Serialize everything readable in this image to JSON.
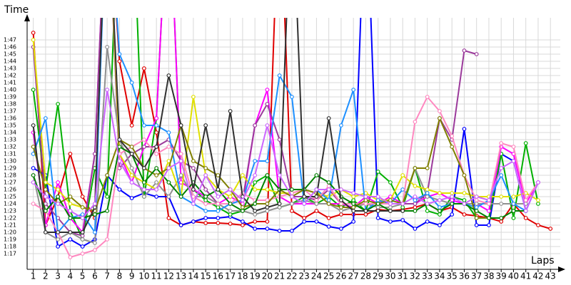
{
  "chart_data": {
    "type": "line",
    "ylabel": "Time",
    "xlabel": "Laps",
    "x": [
      1,
      2,
      3,
      4,
      5,
      6,
      7,
      8,
      9,
      10,
      11,
      12,
      13,
      14,
      15,
      16,
      17,
      18,
      19,
      20,
      21,
      22,
      23,
      24,
      25,
      26,
      27,
      28,
      29,
      30,
      31,
      32,
      33,
      34,
      35,
      36,
      37,
      38,
      39,
      40,
      41,
      42,
      43
    ],
    "xlim": [
      0.5,
      43.8
    ],
    "ylim": [
      74.8,
      110.1
    ],
    "grid": true,
    "yticks": [
      {
        "value": 77,
        "label": "1:17"
      },
      {
        "value": 78,
        "label": "1:18"
      },
      {
        "value": 79,
        "label": "1:19"
      },
      {
        "value": 80,
        "label": "1:20"
      },
      {
        "value": 81,
        "label": "1:21"
      },
      {
        "value": 82,
        "label": "1:22"
      },
      {
        "value": 83,
        "label": "1:23"
      },
      {
        "value": 84,
        "label": "1:24"
      },
      {
        "value": 85,
        "label": "1:25"
      },
      {
        "value": 86,
        "label": "1:26"
      },
      {
        "value": 87,
        "label": "1:27"
      },
      {
        "value": 88,
        "label": "1:28"
      },
      {
        "value": 89,
        "label": "1:29"
      },
      {
        "value": 90,
        "label": "1:30"
      },
      {
        "value": 91,
        "label": "1:31"
      },
      {
        "value": 92,
        "label": "1:32"
      },
      {
        "value": 93,
        "label": "1:33"
      },
      {
        "value": 94,
        "label": "1:34"
      },
      {
        "value": 95,
        "label": "1:35"
      },
      {
        "value": 96,
        "label": "1:36"
      },
      {
        "value": 97,
        "label": "1:37"
      },
      {
        "value": 98,
        "label": "1:38"
      },
      {
        "value": 99,
        "label": "1:39"
      },
      {
        "value": 100,
        "label": "1:40"
      },
      {
        "value": 101,
        "label": "1:41"
      },
      {
        "value": 102,
        "label": "1:42"
      },
      {
        "value": 103,
        "label": "1:43"
      },
      {
        "value": 104,
        "label": "1:44"
      },
      {
        "value": 105,
        "label": "1:45"
      },
      {
        "value": 106,
        "label": "1:46"
      },
      {
        "value": 107,
        "label": "1:47"
      }
    ],
    "series": [
      {
        "color": "#e00000",
        "values": [
          108,
          81,
          85,
          91,
          85,
          82,
          130,
          104,
          95,
          103,
          94,
          82,
          81,
          81.5,
          81.3,
          81.3,
          81.2,
          81,
          81.5,
          81.5,
          130,
          83,
          82,
          83,
          82,
          82.5,
          82.5,
          82.5,
          83.2,
          83,
          83.2,
          83.5,
          84,
          83,
          83.5,
          82.5,
          82.3,
          82,
          81.5,
          84,
          82,
          81,
          80.5
        ]
      },
      {
        "color": "#0000ff",
        "values": [
          89,
          88,
          78,
          79,
          78,
          79,
          88,
          86,
          84.8,
          85.5,
          85,
          85,
          81,
          81.5,
          82,
          82,
          82.2,
          81.5,
          80.5,
          80.5,
          80.2,
          80.2,
          81.5,
          81.5,
          80.8,
          80.5,
          81.5,
          130,
          82,
          81.5,
          81.7,
          80.5,
          81.5,
          81,
          82.5,
          94.5,
          81,
          81,
          91,
          90,
          83,
          87,
          null
        ]
      },
      {
        "color": "#00b000",
        "values": [
          100,
          86,
          98,
          83,
          79,
          89,
          85,
          130,
          130,
          85,
          96,
          130,
          87,
          86,
          84.5,
          83.5,
          82.5,
          83,
          87,
          88,
          83.5,
          84,
          85,
          84,
          85,
          83.5,
          84.5,
          83,
          88.5,
          87,
          83.5,
          89,
          83,
          82.5,
          85,
          84.5,
          82,
          82,
          91,
          82,
          92.5,
          84,
          null
        ]
      },
      {
        "color": "#ff00ff",
        "values": [
          94,
          81,
          87,
          82,
          80,
          91,
          130,
          91,
          87,
          92,
          96,
          130,
          87,
          86,
          85,
          84,
          85,
          84,
          95,
          100,
          85,
          84,
          84,
          84,
          84,
          84,
          83.5,
          85,
          84,
          85,
          84,
          84,
          85,
          85.5,
          84.5,
          84,
          84,
          83,
          92,
          91,
          84,
          87,
          null
        ]
      },
      {
        "color": "#9b3a9b",
        "values": [
          106,
          84,
          82,
          80,
          79.5,
          91,
          130,
          89,
          91,
          92,
          92,
          93,
          90,
          89,
          86,
          84,
          84,
          84.5,
          95,
          98,
          93,
          85,
          85,
          84.5,
          86,
          84,
          84,
          84,
          84,
          84,
          84,
          84,
          85.5,
          96,
          93,
          105.5,
          105,
          null,
          null,
          null,
          null,
          null,
          null
        ]
      },
      {
        "color": "#909090",
        "values": [
          88,
          80,
          79,
          80,
          79,
          78.5,
          106,
          93,
          89,
          85,
          87,
          85,
          88,
          85,
          85,
          84,
          83,
          83,
          82.5,
          83,
          83.5,
          84,
          84.5,
          84,
          84,
          83,
          83.5,
          84,
          83.5,
          83.5,
          84,
          89,
          85,
          84.5,
          84,
          84,
          84,
          84,
          84,
          84,
          84,
          null,
          null
        ]
      },
      {
        "color": "#e0e000",
        "values": [
          107,
          87,
          86,
          84,
          83.5,
          83,
          130,
          91,
          88,
          87,
          86,
          90,
          85,
          99,
          88,
          86,
          85,
          88,
          86,
          86,
          85.5,
          85.5,
          86,
          85.5,
          85,
          86,
          85,
          85.5,
          84.5,
          84.5,
          88,
          86.5,
          86,
          85.5,
          85.5,
          85.5,
          85,
          85,
          85,
          85,
          85.5,
          84.5,
          null
        ]
      },
      {
        "color": "#1e90ff",
        "values": [
          91,
          96,
          80,
          82,
          82.5,
          80,
          130,
          105,
          101,
          95,
          95,
          94,
          85,
          84,
          83,
          83,
          84,
          84.5,
          90,
          90,
          102,
          99,
          84,
          86,
          84.5,
          95,
          100,
          83,
          84.5,
          84,
          86,
          84.5,
          85.5,
          83.5,
          84,
          84,
          83.5,
          84.5,
          88,
          84,
          83,
          null,
          null
        ]
      },
      {
        "color": "#ff88c0",
        "values": [
          84,
          83,
          80,
          76.5,
          77,
          77.5,
          79,
          91,
          92,
          93,
          91,
          92,
          91,
          85,
          84,
          84,
          84,
          85.5,
          84.5,
          84.5,
          85,
          85.5,
          86,
          84.5,
          86.5,
          84,
          84,
          84,
          84,
          84,
          84,
          95.5,
          99,
          97,
          93.5,
          88,
          84.5,
          84,
          92.5,
          92,
          84.5,
          87,
          null
        ]
      },
      {
        "color": "#808000",
        "values": [
          92,
          86,
          84,
          85,
          83.5,
          83,
          88,
          93,
          92,
          89,
          88,
          89,
          95,
          90,
          89,
          88,
          86,
          83.5,
          84,
          84,
          86,
          85,
          86,
          85.5,
          84,
          83.5,
          83.5,
          84.5,
          84,
          84.5,
          84,
          89,
          89,
          96,
          92,
          88,
          82,
          82,
          null,
          null,
          null,
          null,
          null
        ]
      },
      {
        "color": "#008000",
        "values": [
          88,
          83,
          85,
          82,
          82,
          82.5,
          83,
          92,
          91,
          87,
          89,
          87,
          85,
          87,
          85,
          86,
          84,
          83,
          84,
          88,
          86,
          86,
          86,
          88,
          87,
          85,
          84,
          83,
          84,
          83,
          83,
          83,
          84,
          83,
          84,
          84,
          83,
          82,
          82,
          83,
          83,
          null,
          null
        ]
      },
      {
        "color": "#303030",
        "values": [
          95,
          80,
          80,
          80,
          80,
          83.5,
          130,
          93,
          91,
          89,
          92,
          102,
          95,
          86,
          95,
          86,
          97,
          85,
          83,
          83.5,
          84,
          130,
          85,
          85,
          96,
          84.5,
          83,
          83,
          83,
          83,
          83,
          null,
          null,
          null,
          null,
          null,
          null,
          null,
          null,
          null,
          null,
          null,
          null
        ]
      },
      {
        "color": "#cc66ff",
        "values": [
          87,
          85,
          84,
          83,
          82,
          84,
          100,
          90,
          87,
          86,
          86,
          89,
          90,
          84,
          88,
          85,
          86,
          84.5,
          88,
          95,
          88,
          85,
          84,
          86,
          86,
          86,
          85.5,
          85,
          85,
          84,
          84,
          85,
          84,
          84.5,
          85,
          84,
          85,
          84.5,
          89,
          90,
          83,
          87,
          null
        ]
      }
    ]
  }
}
